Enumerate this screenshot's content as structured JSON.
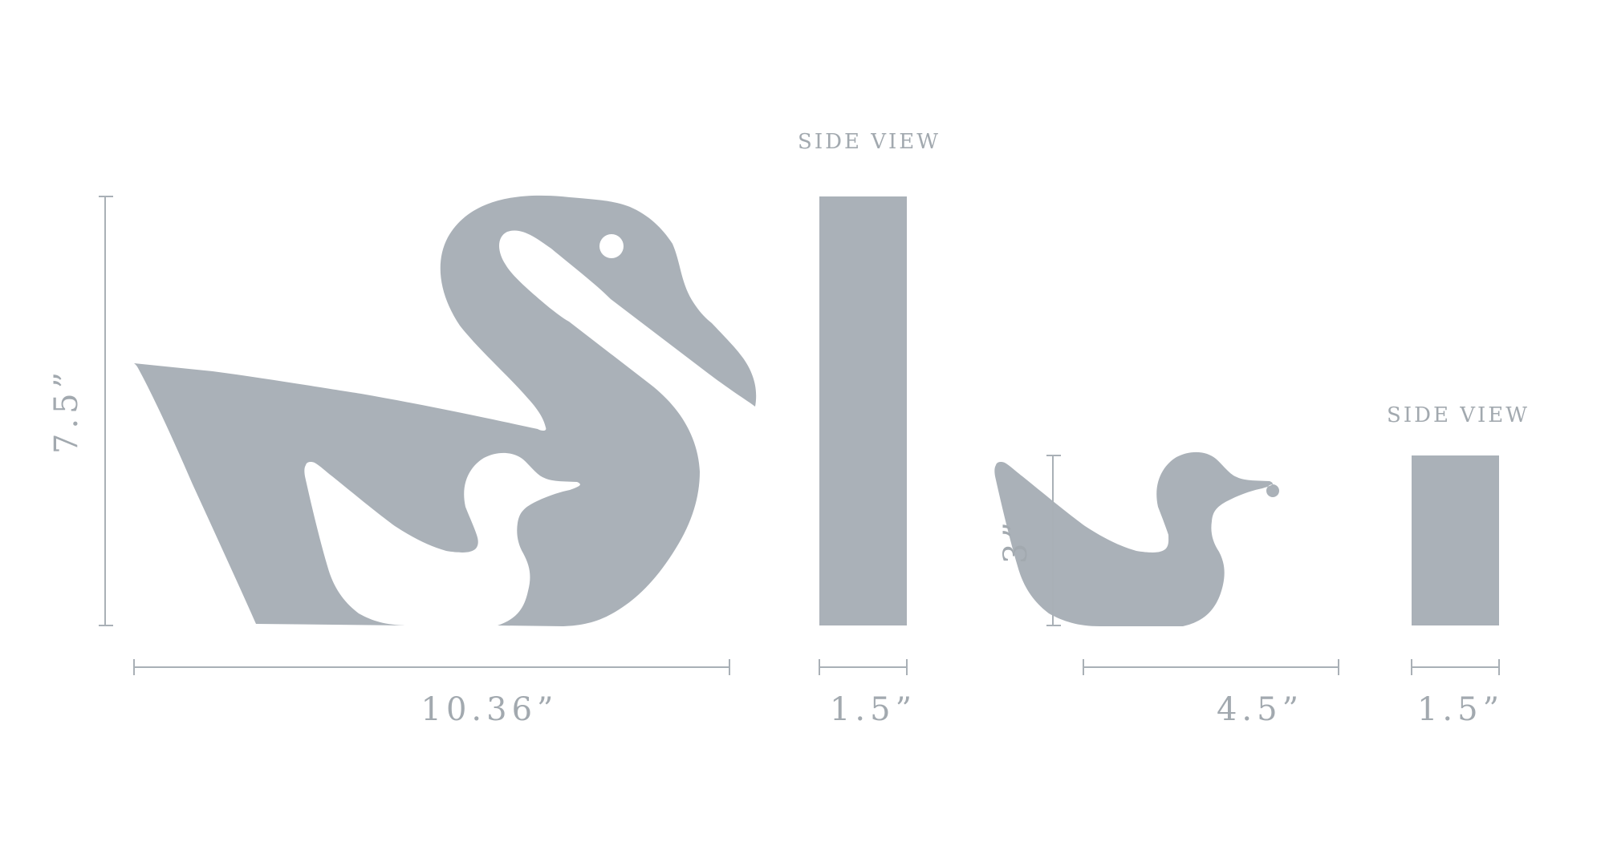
{
  "colors": {
    "shape": "#aab1b8",
    "dimension_line": "#a9b0b6",
    "label": "#a2a9af",
    "background": "#ffffff"
  },
  "swan": {
    "height_label": "7.5”",
    "width_label": "10.36”"
  },
  "swan_side": {
    "title": "SIDE VIEW",
    "width_label": "1.5”"
  },
  "duckling": {
    "height_label": "3”",
    "width_label": "4.5”"
  },
  "duckling_side": {
    "title": "SIDE VIEW",
    "width_label": "1.5”"
  }
}
